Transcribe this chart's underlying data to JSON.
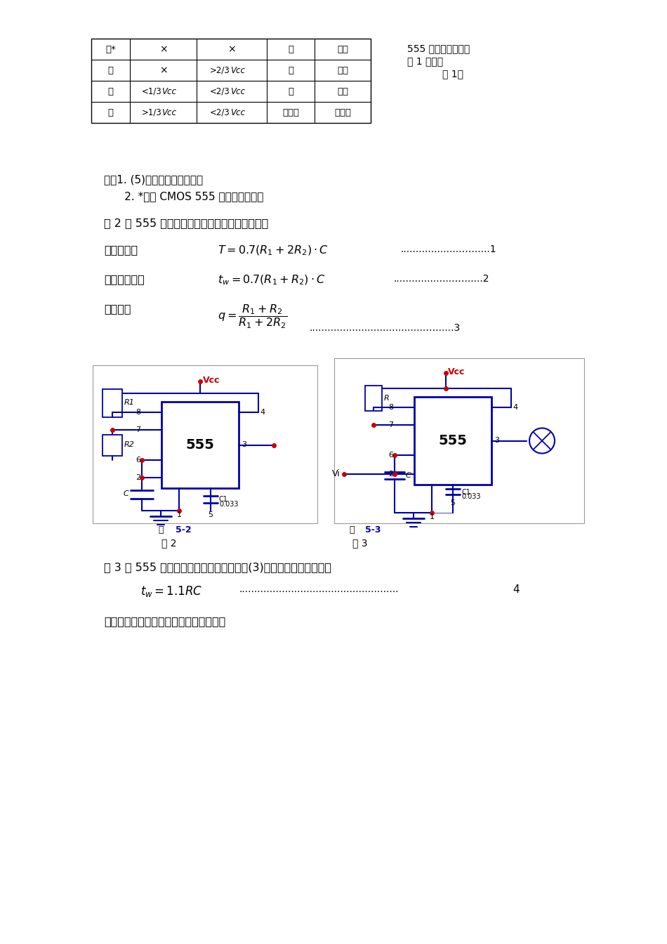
{
  "bg": "#ffffff",
  "table_data": [
    [
      "低*",
      "×",
      "×",
      "低",
      "导通"
    ],
    [
      "高",
      "×",
      ">2/3Vcc",
      "低",
      "导通"
    ],
    [
      "高",
      "<1/3Vcc",
      "<2/3Vcc",
      "高",
      "截止"
    ],
    [
      "高",
      ">1/3Vcc",
      "<2/3Vcc",
      "原状态",
      "原状态"
    ]
  ],
  "caption1": "555 集成电路功能如",
  "caption2": "表 1 所示。",
  "caption3": "表 1：",
  "note1": "注：1. (5)脚通过小电容接地。",
  "note2": "      2. *栏对 CMOS 555 电路略有不同。",
  "intro": "图 2 是 555 振荡电路，从理论上我们可以得出：",
  "label_zhouqi": "振荡周期：",
  "label_gaoping": "高电平宽度：",
  "label_zhankong": "占空比：",
  "fig3_intro": "图 3 为 555 单稳触发电路，我们可以得出(3)脚输出高电平宽度为：",
  "section4": "四、计算机仿真实验内容及步骤、结果：",
  "fig2_label1": "图",
  "fig2_label2": "5-2",
  "fig2_label3": "图 2",
  "fig3_label1": "图",
  "fig3_label2": "5-3",
  "fig3_label3": "图 3",
  "wire_color": "#0000aa",
  "red_color": "#cc0000",
  "black": "#000000"
}
